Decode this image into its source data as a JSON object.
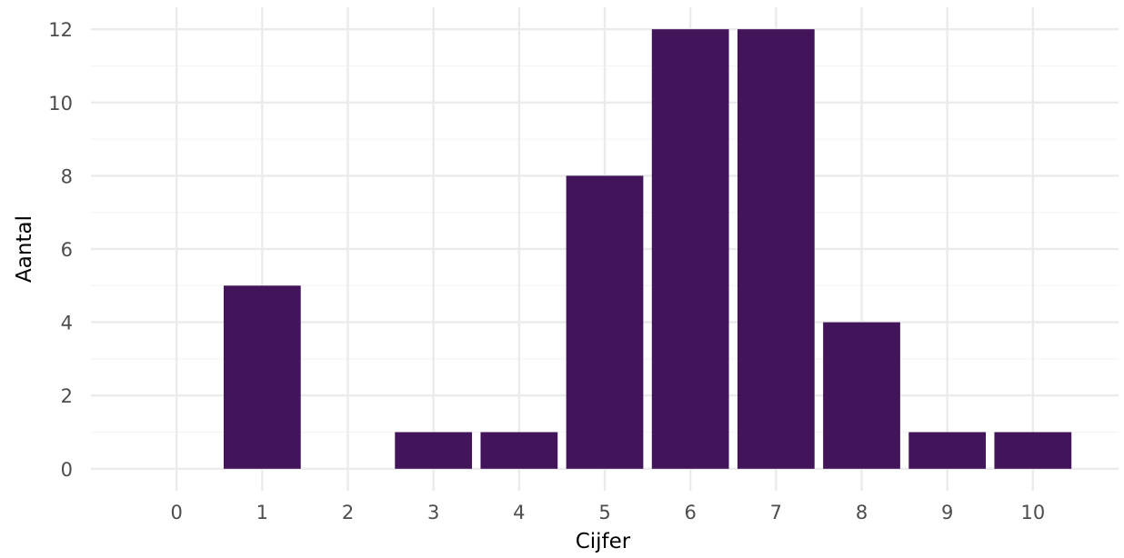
{
  "chart_data": {
    "type": "bar",
    "title": "",
    "xlabel": "Cijfer",
    "ylabel": "Aantal",
    "x": [
      0,
      1,
      2,
      3,
      4,
      5,
      6,
      7,
      8,
      9,
      10
    ],
    "values": [
      0,
      5,
      0,
      1,
      1,
      8,
      12,
      12,
      4,
      1,
      1
    ],
    "x_tick_labels": [
      "0",
      "1",
      "2",
      "3",
      "4",
      "5",
      "6",
      "7",
      "8",
      "9",
      "10"
    ],
    "y_ticks": [
      0,
      2,
      4,
      6,
      8,
      10,
      12
    ],
    "y_tick_labels": [
      "0",
      "2",
      "4",
      "6",
      "8",
      "10",
      "12"
    ],
    "xlim": [
      -1.0,
      11.0
    ],
    "ylim": [
      -0.6,
      12.6
    ],
    "bar_color": "#42145a",
    "grid": true,
    "legend": "none"
  }
}
